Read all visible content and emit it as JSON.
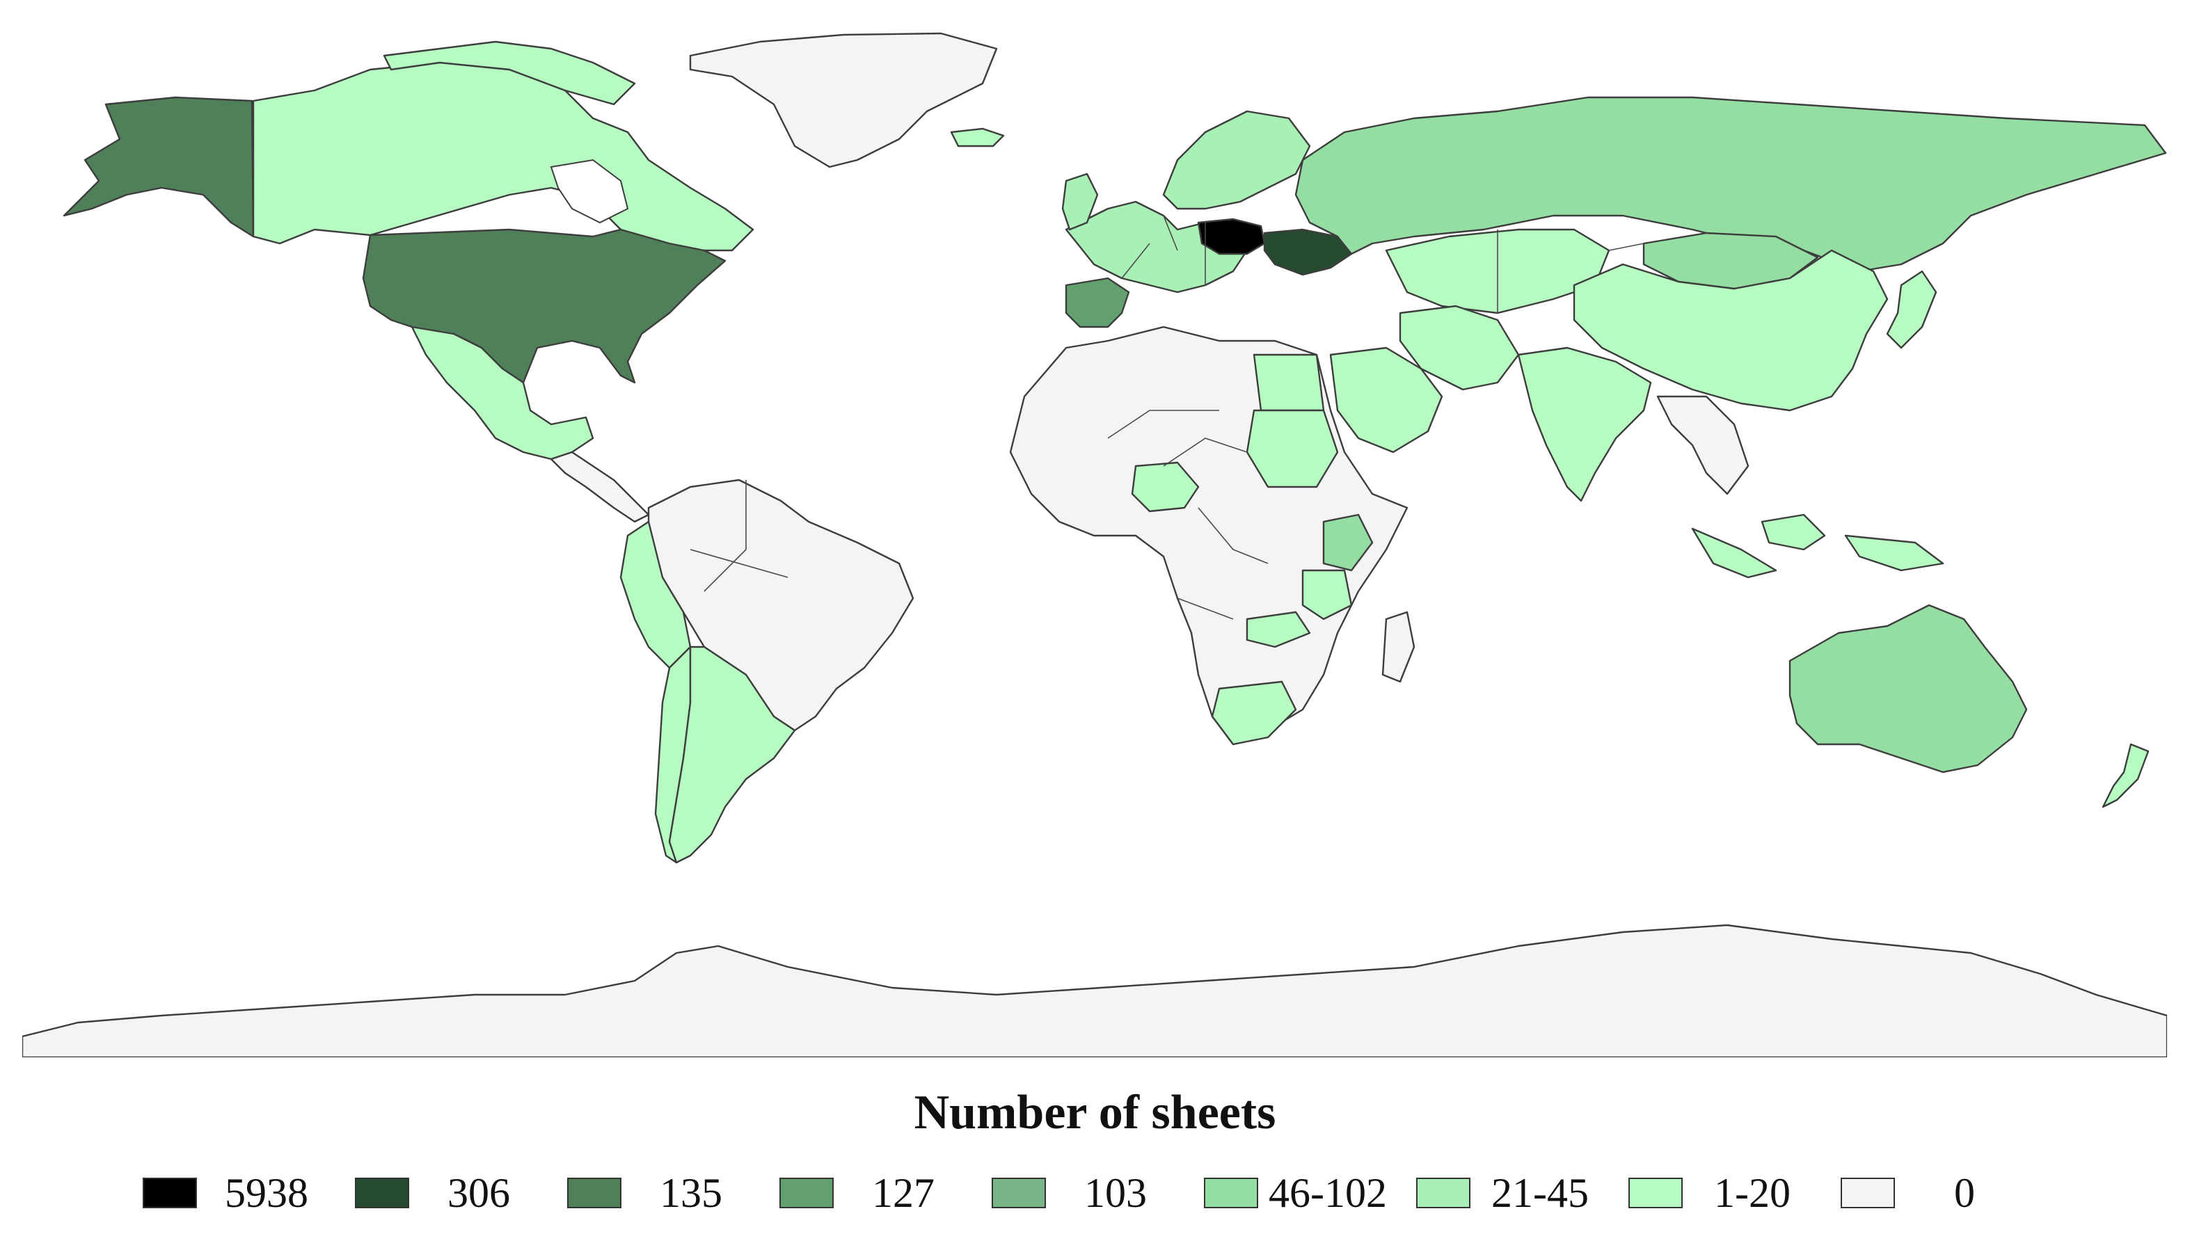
{
  "legend": {
    "title": "Number of sheets",
    "items": [
      {
        "label": "5938",
        "color": "#000000"
      },
      {
        "label": "306",
        "color": "#264a2f"
      },
      {
        "label": "135",
        "color": "#4f8059"
      },
      {
        "label": "127",
        "color": "#62a070"
      },
      {
        "label": "103",
        "color": "#78b587"
      },
      {
        "label": "46-102",
        "color": "#94dea3"
      },
      {
        "label": "21-45",
        "color": "#a8f0b5"
      },
      {
        "label": "1-20",
        "color": "#b5fbc2"
      },
      {
        "label": "0",
        "color": "#f4f4f4"
      }
    ]
  },
  "regions": [
    {
      "name": "Poland",
      "value": "5938",
      "color": "#000000"
    },
    {
      "name": "Ukraine",
      "value": "306",
      "color": "#264a2f"
    },
    {
      "name": "United States",
      "value": "135",
      "color": "#4f8059"
    },
    {
      "name": "Alaska",
      "value": "135",
      "color": "#4f8059"
    },
    {
      "name": "Spain",
      "value": "127",
      "color": "#62a070"
    },
    {
      "name": "Russia",
      "value": "46-102",
      "color": "#94dea3"
    },
    {
      "name": "Australia",
      "value": "46-102",
      "color": "#94dea3"
    },
    {
      "name": "Kenya",
      "value": "46-102",
      "color": "#94dea3"
    },
    {
      "name": "Mongolia",
      "value": "46-102",
      "color": "#94dea3"
    },
    {
      "name": "Canada",
      "value": "1-20",
      "color": "#b5fbc2"
    },
    {
      "name": "China",
      "value": "1-20",
      "color": "#b5fbc2"
    },
    {
      "name": "Kazakhstan",
      "value": "1-20",
      "color": "#b5fbc2"
    },
    {
      "name": "India",
      "value": "1-20",
      "color": "#b5fbc2"
    },
    {
      "name": "Mexico",
      "value": "1-20",
      "color": "#b5fbc2"
    },
    {
      "name": "Argentina",
      "value": "1-20",
      "color": "#b5fbc2"
    },
    {
      "name": "Chile",
      "value": "1-20",
      "color": "#b5fbc2"
    },
    {
      "name": "Peru",
      "value": "1-20",
      "color": "#b5fbc2"
    },
    {
      "name": "Sudan",
      "value": "1-20",
      "color": "#b5fbc2"
    },
    {
      "name": "Egypt",
      "value": "1-20",
      "color": "#b5fbc2"
    },
    {
      "name": "Nigeria",
      "value": "1-20",
      "color": "#b5fbc2"
    },
    {
      "name": "South Africa",
      "value": "1-20",
      "color": "#b5fbc2"
    },
    {
      "name": "Tanzania",
      "value": "1-20",
      "color": "#b5fbc2"
    },
    {
      "name": "Zambia",
      "value": "1-20",
      "color": "#b5fbc2"
    },
    {
      "name": "Iran",
      "value": "1-20",
      "color": "#b5fbc2"
    },
    {
      "name": "Saudi Arabia",
      "value": "1-20",
      "color": "#b5fbc2"
    },
    {
      "name": "Indonesia",
      "value": "1-20",
      "color": "#b5fbc2"
    },
    {
      "name": "New Zealand",
      "value": "1-20",
      "color": "#b5fbc2"
    },
    {
      "name": "Japan",
      "value": "1-20",
      "color": "#b5fbc2"
    },
    {
      "name": "Scandinavia",
      "value": "21-45",
      "color": "#a8f0b5"
    },
    {
      "name": "Western Europe",
      "value": "21-45",
      "color": "#a8f0b5"
    },
    {
      "name": "Greenland",
      "value": "0",
      "color": "#f4f4f4"
    },
    {
      "name": "Brazil",
      "value": "0",
      "color": "#f4f4f4"
    },
    {
      "name": "Antarctica",
      "value": "0",
      "color": "#f4f4f4"
    }
  ]
}
